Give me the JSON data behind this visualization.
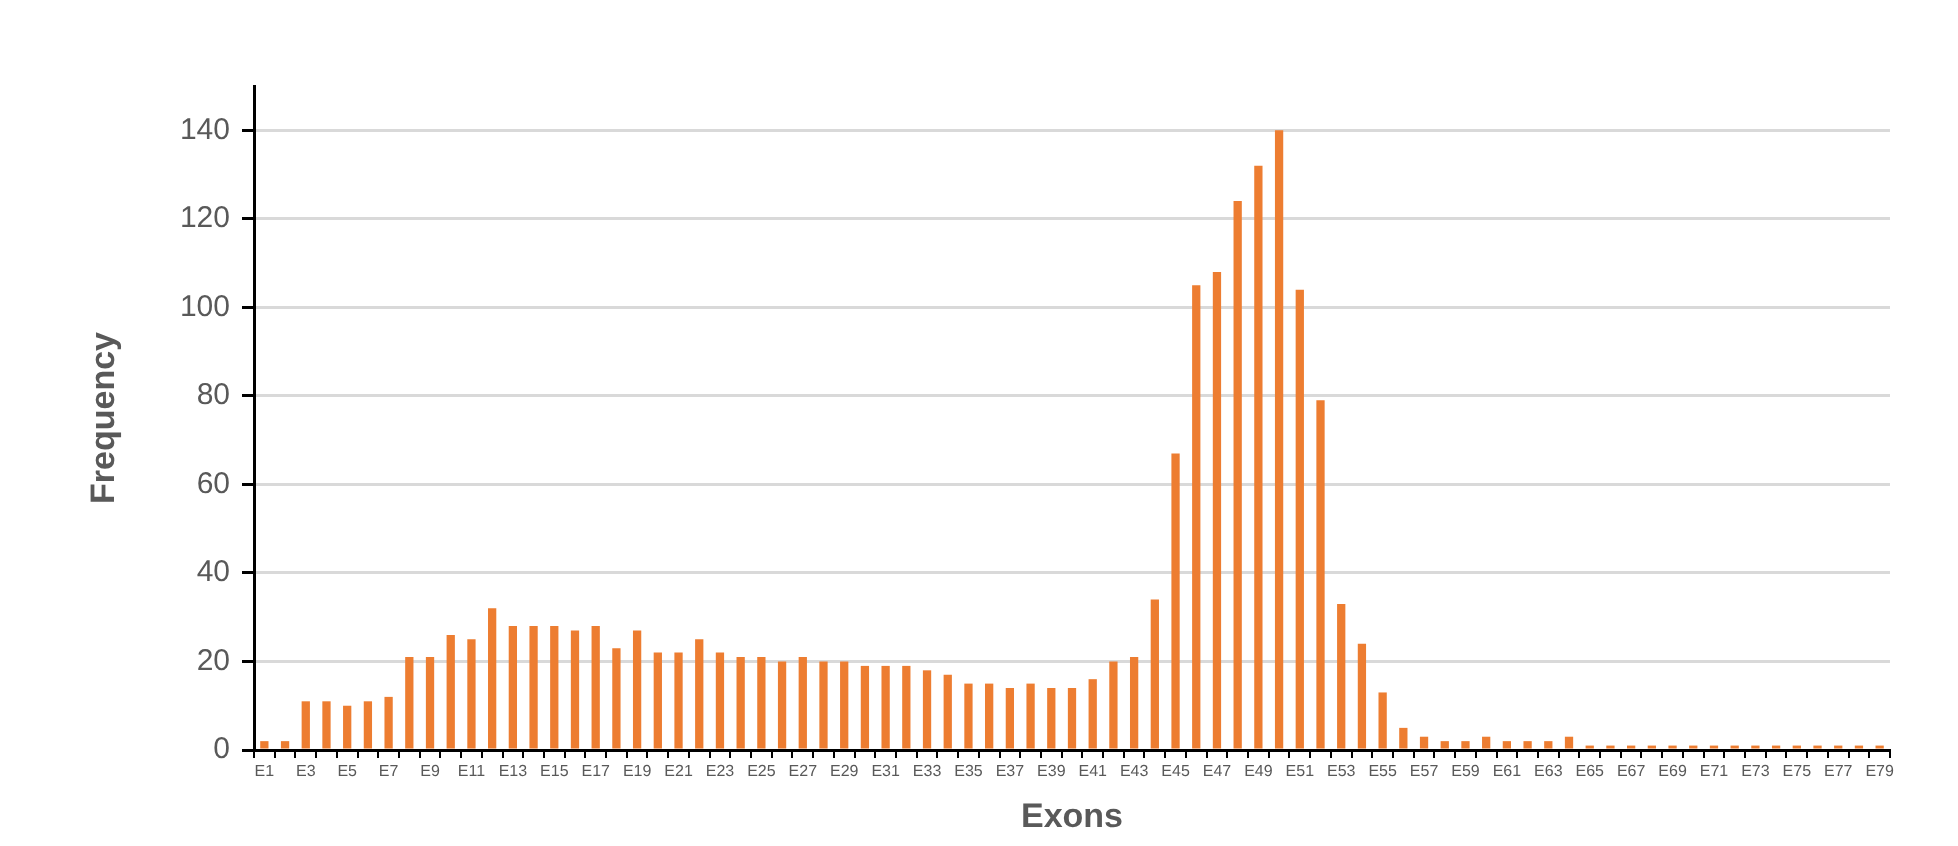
{
  "chart_data": {
    "type": "bar",
    "xlabel": "Exons",
    "ylabel": "Frequency",
    "categories": [
      "E1",
      null,
      "E3",
      null,
      "E5",
      null,
      "E7",
      null,
      "E9",
      null,
      "E11",
      null,
      "E13",
      null,
      "E15",
      null,
      "E17",
      null,
      "E19",
      null,
      "E21",
      null,
      "E23",
      null,
      "E25",
      null,
      "E27",
      null,
      "E29",
      null,
      "E31",
      null,
      "E33",
      null,
      "E35",
      null,
      "E37",
      null,
      "E39",
      null,
      "E41",
      null,
      "E43",
      null,
      "E45",
      null,
      "E47",
      null,
      "E49",
      null,
      "E51",
      null,
      "E53",
      null,
      "E55",
      null,
      "E57",
      null,
      "E59",
      null,
      "E61",
      null,
      "E63",
      null,
      "E65",
      null,
      "E67",
      null,
      "E69",
      null,
      "E71",
      null,
      "E73",
      null,
      "E75",
      null,
      "E77",
      null,
      "E79"
    ],
    "values": [
      2,
      2,
      11,
      11,
      10,
      11,
      12,
      21,
      21,
      26,
      25,
      32,
      28,
      28,
      28,
      27,
      28,
      23,
      27,
      22,
      22,
      25,
      22,
      21,
      21,
      20,
      21,
      20,
      20,
      19,
      19,
      19,
      18,
      17,
      15,
      15,
      14,
      15,
      14,
      14,
      16,
      20,
      21,
      34,
      67,
      105,
      108,
      124,
      132,
      140,
      104,
      79,
      33,
      24,
      13,
      5,
      3,
      2,
      2,
      3,
      2,
      2,
      2,
      3,
      1,
      1,
      1,
      1,
      1,
      1,
      1,
      1,
      1,
      1,
      1,
      1,
      1,
      1,
      1
    ],
    "color": "#ed7d31",
    "ylim": [
      0,
      150
    ],
    "yticks": [
      0,
      20,
      40,
      60,
      80,
      100,
      120,
      140
    ],
    "grid": "y"
  }
}
